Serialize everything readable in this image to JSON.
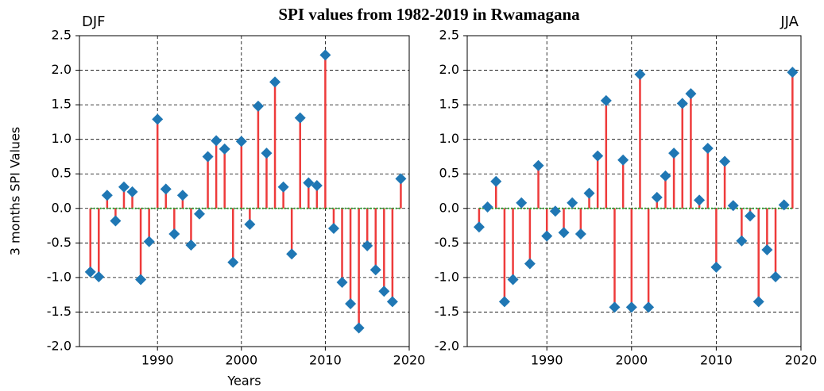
{
  "title": "SPI values from 1982-2019 in Rwamagana",
  "chart_data": [
    {
      "type": "stem",
      "label": "DJF",
      "xlabel": "Years",
      "ylabel": "3 months SPI Values",
      "stem_color": "#ee3b3b",
      "marker_color": "#1f77b4",
      "baseline_color": "#2ca02c",
      "grid": true,
      "x": [
        1982,
        1983,
        1984,
        1985,
        1986,
        1987,
        1988,
        1989,
        1990,
        1991,
        1992,
        1993,
        1994,
        1995,
        1996,
        1997,
        1998,
        1999,
        2000,
        2001,
        2002,
        2003,
        2004,
        2005,
        2006,
        2007,
        2008,
        2009,
        2010,
        2011,
        2012,
        2013,
        2014,
        2015,
        2016,
        2017,
        2018,
        2019
      ],
      "values": [
        -0.92,
        -0.99,
        0.19,
        -0.18,
        0.31,
        0.24,
        -1.03,
        -0.48,
        1.29,
        0.28,
        -0.37,
        0.19,
        -0.53,
        -0.08,
        0.75,
        0.98,
        0.86,
        -0.78,
        0.97,
        -0.23,
        1.48,
        0.8,
        1.83,
        0.31,
        -0.66,
        1.31,
        0.37,
        0.33,
        2.22,
        -0.29,
        -1.07,
        -1.38,
        -1.73,
        -0.54,
        -0.89,
        -1.2,
        -1.35,
        0.43
      ],
      "xlim": [
        1980.7,
        2020
      ],
      "xticks": [
        1990,
        2000,
        2010,
        2020
      ],
      "ylim": [
        -2,
        2.5
      ],
      "yticks": [
        {
          "value": -2,
          "label": "-2.0"
        },
        -1.5,
        {
          "value": -1,
          "label": "-1.0"
        },
        -0.5,
        {
          "value": 0,
          "label": "0.0"
        },
        0.5,
        {
          "value": 1,
          "label": "1.0"
        },
        1.5,
        {
          "value": 2,
          "label": "2.0"
        },
        2.5
      ]
    },
    {
      "type": "stem",
      "label": "JJA",
      "stem_color": "#ee3b3b",
      "marker_color": "#1f77b4",
      "baseline_color": "#2ca02c",
      "grid": true,
      "x": [
        1982,
        1983,
        1984,
        1985,
        1986,
        1987,
        1988,
        1989,
        1990,
        1991,
        1992,
        1993,
        1994,
        1995,
        1996,
        1997,
        1998,
        1999,
        2000,
        2001,
        2002,
        2003,
        2004,
        2005,
        2006,
        2007,
        2008,
        2009,
        2010,
        2011,
        2012,
        2013,
        2014,
        2015,
        2016,
        2017,
        2018,
        2019
      ],
      "values": [
        -0.27,
        0.02,
        0.39,
        -1.35,
        -1.03,
        0.08,
        -0.8,
        0.62,
        -0.4,
        -0.04,
        -0.35,
        0.08,
        -0.37,
        0.22,
        0.76,
        1.56,
        -1.43,
        0.7,
        -1.43,
        1.94,
        -1.43,
        0.16,
        0.47,
        0.8,
        1.52,
        1.66,
        0.12,
        0.87,
        -0.85,
        0.68,
        0.04,
        -0.47,
        -0.11,
        -1.35,
        -0.6,
        -0.99,
        0.05,
        1.97
      ],
      "xlim": [
        1980.6,
        2020
      ],
      "xticks": [
        1990,
        2000,
        2010,
        2020
      ],
      "ylim": [
        -2,
        2.5
      ],
      "yticks": [
        {
          "value": -2,
          "label": "-2.0"
        },
        -1.5,
        {
          "value": -1,
          "label": "-1.0"
        },
        -0.5,
        {
          "value": 0,
          "label": "0.0"
        },
        0.5,
        {
          "value": 1,
          "label": "1.0"
        },
        1.5,
        {
          "value": 2,
          "label": "2.0"
        },
        2.5
      ]
    }
  ]
}
